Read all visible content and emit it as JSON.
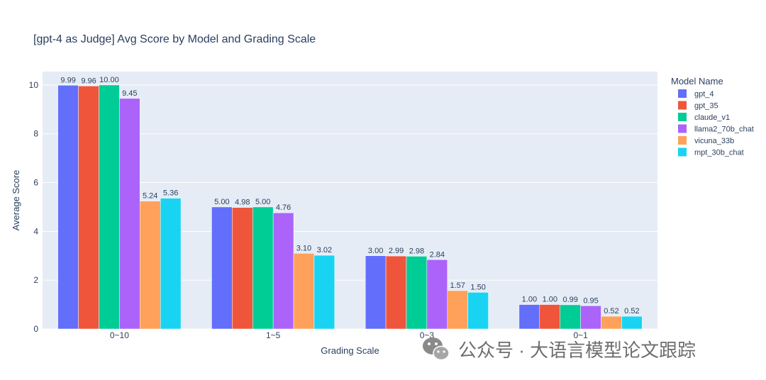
{
  "chart_data": {
    "type": "bar",
    "title": "[gpt-4 as Judge] Avg Score by Model and Grading Scale",
    "xlabel": "Grading Scale",
    "ylabel": "Average Score",
    "ylim": [
      0,
      10.55
    ],
    "yticks": [
      "0",
      "2",
      "4",
      "6",
      "8",
      "10"
    ],
    "grid": true,
    "legend_title": "Model Name",
    "legend_position": "right",
    "categories": [
      "0~10",
      "1~5",
      "0~3",
      "0~1"
    ],
    "series": [
      {
        "name": "gpt_4",
        "color": "#636efa",
        "values": [
          9.99,
          5.0,
          3.0,
          1.0
        ],
        "labels": [
          "9.99",
          "5.00",
          "3.00",
          "1.00"
        ]
      },
      {
        "name": "gpt_35",
        "color": "#ef553b",
        "values": [
          9.96,
          4.98,
          2.99,
          1.0
        ],
        "labels": [
          "9.96",
          "4.98",
          "2.99",
          "1.00"
        ]
      },
      {
        "name": "claude_v1",
        "color": "#00cc96",
        "values": [
          10.0,
          5.0,
          2.98,
          0.99
        ],
        "labels": [
          "10.00",
          "5.00",
          "2.98",
          "0.99"
        ]
      },
      {
        "name": "llama2_70b_chat",
        "color": "#ab63fa",
        "values": [
          9.45,
          4.76,
          2.84,
          0.95
        ],
        "labels": [
          "9.45",
          "4.76",
          "2.84",
          "0.95"
        ]
      },
      {
        "name": "vicuna_33b",
        "color": "#ffa15a",
        "values": [
          5.24,
          3.1,
          1.57,
          0.52
        ],
        "labels": [
          "5.24",
          "3.10",
          "1.57",
          "0.52"
        ]
      },
      {
        "name": "mpt_30b_chat",
        "color": "#19d3f3",
        "values": [
          5.36,
          3.02,
          1.5,
          0.52
        ],
        "labels": [
          "5.36",
          "3.02",
          "1.50",
          "0.52"
        ]
      }
    ],
    "colors": {
      "plot_bg": "#e5ecf6",
      "grid": "#ffffff",
      "text": "#2a3f5f"
    }
  },
  "watermark": {
    "text": "公众号 · 大语言模型论文跟踪",
    "icon": "wechat-icon"
  }
}
